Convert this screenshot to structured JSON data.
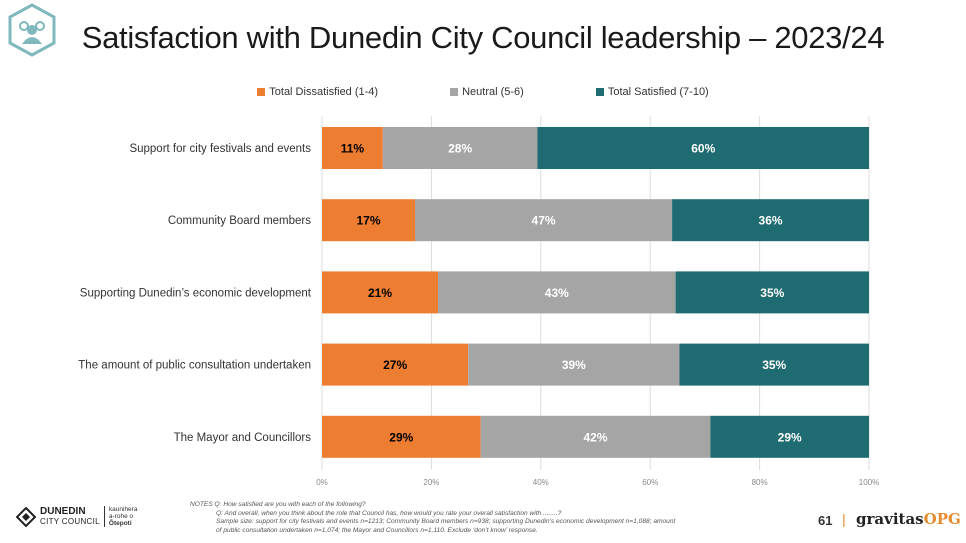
{
  "title": "Satisfaction with Dunedin City Council leadership – 2023/24",
  "chart_data": {
    "type": "bar",
    "orientation": "horizontal",
    "stacked": true,
    "categories": [
      "Support for city festivals and events",
      "Community Board members",
      "Supporting Dunedin’s economic development",
      "The amount of public consultation undertaken",
      "The Mayor and Councillors"
    ],
    "series": [
      {
        "name": "Total Dissatisfied (1-4)",
        "color": "#ED7D31",
        "label_color": "#000000",
        "values": [
          11,
          17,
          21,
          27,
          29
        ],
        "labels": [
          "11%",
          "17%",
          "21%",
          "27%",
          "29%"
        ]
      },
      {
        "name": "Neutral (5-6)",
        "color": "#A5A5A5",
        "label_color": "#ffffff",
        "values": [
          28,
          47,
          43,
          39,
          42
        ],
        "labels": [
          "28%",
          "47%",
          "43%",
          "39%",
          "42%"
        ]
      },
      {
        "name": "Total Satisfied (7-10)",
        "color": "#1F6B72",
        "label_color": "#ffffff",
        "values": [
          60,
          36,
          35,
          35,
          29
        ],
        "labels": [
          "60%",
          "36%",
          "35%",
          "35%",
          "29%"
        ]
      }
    ],
    "xlim": [
      0,
      100
    ],
    "x_ticks": [
      "0%",
      "20%",
      "40%",
      "60%",
      "80%",
      "100%"
    ],
    "legend_position": "top",
    "grid": true
  },
  "notes": {
    "line1": "NOTES   Q: How satisfied are you with each of the following?",
    "line2": "Q: And overall, when you think about the role that Council has, how would you rate your overall satisfaction with ........?",
    "line3": "Sample size: support for city festivals and events n=1213; Community Board members n=938; supporting Dunedin’s economic development n=1,088; amount",
    "line4": "of public consultation undertaken n=1,074; the Mayor and Councillors n=1,110. Exclude ‘don’t know’ response."
  },
  "footer": {
    "council_name": "DUNEDIN",
    "council_sub": "CITY COUNCIL",
    "council_maori_1": "kaunihera",
    "council_maori_2": "a-rohe o",
    "council_maori_3": "Ōtepoti",
    "page_number": "61",
    "separator": "|",
    "brand_main": "gravitas",
    "brand_accent": "OPG"
  }
}
